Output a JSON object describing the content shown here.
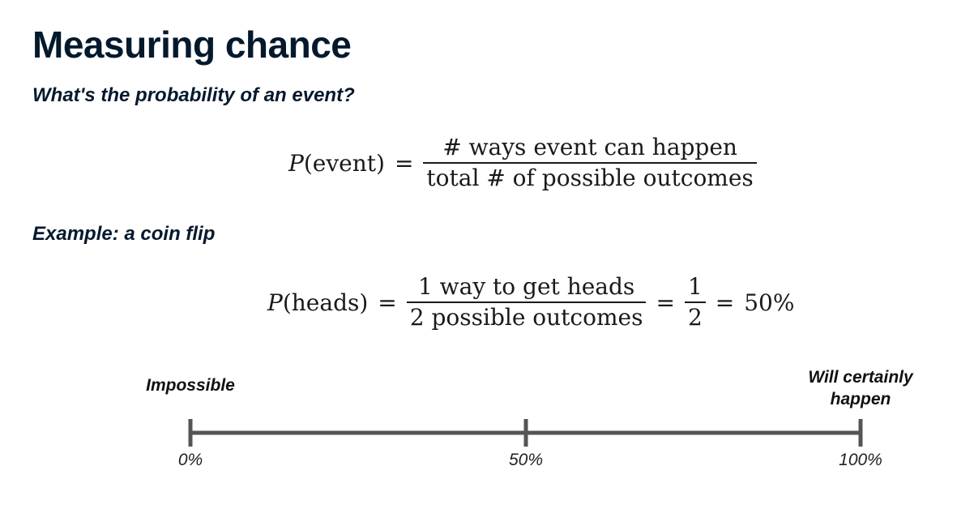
{
  "slide": {
    "title": "Measuring chance",
    "question": "What's the probability of an event?",
    "example_heading": "Example: a coin flip"
  },
  "formula_general": {
    "p": "P",
    "arg": "(event)",
    "equals": "=",
    "numerator": "# ways event can happen",
    "denominator": "total # of possible outcomes"
  },
  "formula_example": {
    "p": "P",
    "arg": "(heads)",
    "equals_1": "=",
    "numerator": "1 way to get heads",
    "denominator": "2 possible outcomes",
    "equals_2": "=",
    "half_num": "1",
    "half_den": "2",
    "equals_3": "=",
    "result": "50%"
  },
  "scale": {
    "left_label": "Impossible",
    "right_label_line1": "Will certainly",
    "right_label_line2": "happen",
    "ticks": [
      "0%",
      "50%",
      "100%"
    ],
    "line_color": "#555555"
  }
}
